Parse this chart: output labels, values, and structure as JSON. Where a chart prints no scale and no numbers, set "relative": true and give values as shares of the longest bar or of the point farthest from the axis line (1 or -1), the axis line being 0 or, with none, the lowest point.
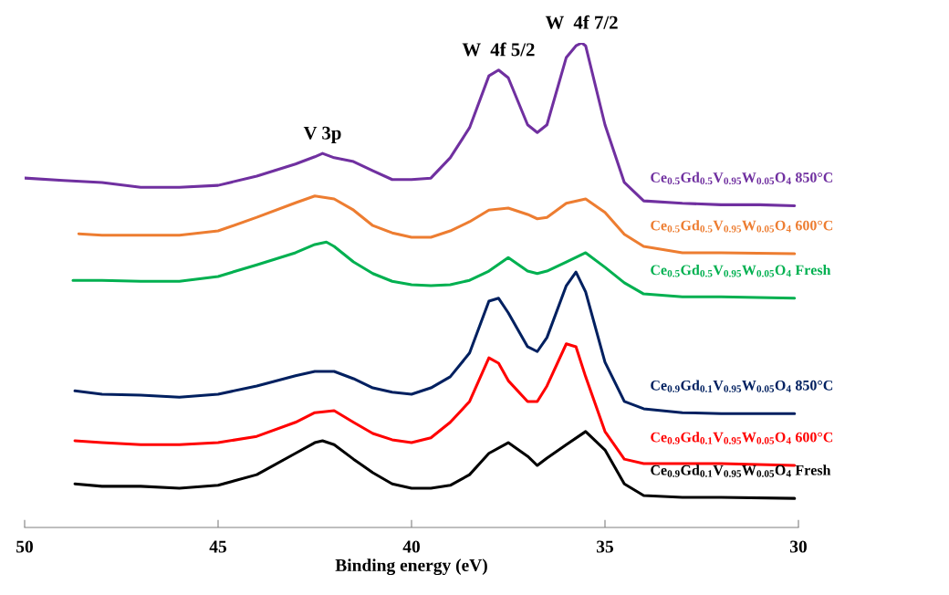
{
  "chart_data": {
    "type": "line",
    "relative": true,
    "xlabel": "Binding energy (eV)",
    "xlim": [
      50,
      30
    ],
    "xticks": [
      50,
      45,
      40,
      35,
      30
    ],
    "annotations": [
      {
        "text": "V 3p",
        "x": 42.3,
        "y": 0.772
      },
      {
        "text": "W  4f 5/2",
        "x": 37.75,
        "y": 0.944
      },
      {
        "text": "W  4f 7/2",
        "x": 35.6,
        "y": 1.0
      }
    ],
    "series": [
      {
        "name": "Ce$_{0.5}$Gd$_{0.5}$V$_{0.95}$W$_{0.05}$O$_{4}$ 850°C",
        "color": "#7030a0",
        "x": [
          50,
          49,
          48,
          47,
          46,
          45,
          44,
          43,
          42.5,
          42.3,
          42,
          41.5,
          41,
          40.5,
          40,
          39.5,
          39,
          38.5,
          38,
          37.75,
          37.5,
          37,
          36.75,
          36.5,
          36,
          35.75,
          35.6,
          35.5,
          35,
          34.5,
          34,
          33,
          32,
          31,
          30.1
        ],
        "values": [
          0.721,
          0.716,
          0.712,
          0.702,
          0.702,
          0.706,
          0.725,
          0.75,
          0.765,
          0.772,
          0.763,
          0.755,
          0.736,
          0.718,
          0.718,
          0.721,
          0.763,
          0.825,
          0.932,
          0.944,
          0.928,
          0.831,
          0.815,
          0.831,
          0.97,
          0.994,
          1.0,
          0.994,
          0.831,
          0.712,
          0.674,
          0.669,
          0.666,
          0.666,
          0.664
        ]
      },
      {
        "name": "Ce$_{0.5}$Gd$_{0.5}$V$_{0.95}$W$_{0.05}$O$_{4}$ 600°C",
        "color": "#ed7d31",
        "x": [
          48.6,
          48,
          47,
          46,
          45,
          44,
          43,
          42.5,
          42,
          41.5,
          41,
          40.5,
          40,
          39.5,
          39,
          38.5,
          38,
          37.5,
          37,
          36.75,
          36.5,
          36,
          35.5,
          35,
          34.5,
          34,
          33,
          32,
          30.1
        ],
        "values": [
          0.606,
          0.603,
          0.603,
          0.603,
          0.612,
          0.64,
          0.67,
          0.684,
          0.678,
          0.655,
          0.623,
          0.608,
          0.599,
          0.599,
          0.612,
          0.631,
          0.655,
          0.659,
          0.646,
          0.637,
          0.64,
          0.669,
          0.678,
          0.65,
          0.605,
          0.58,
          0.567,
          0.567,
          0.565
        ]
      },
      {
        "name": "Ce$_{0.5}$Gd$_{0.5}$V$_{0.95}$W$_{0.05}$O$_{4}$ Fresh",
        "color": "#00b050",
        "x": [
          48.75,
          48,
          47,
          46,
          45,
          44,
          43,
          42.5,
          42.2,
          42,
          41.5,
          41,
          40.5,
          40,
          39.5,
          39,
          38.5,
          38,
          37.5,
          37,
          36.75,
          36.5,
          36,
          35.5,
          35,
          34.5,
          34,
          33,
          32,
          30.1
        ],
        "values": [
          0.51,
          0.51,
          0.508,
          0.508,
          0.518,
          0.542,
          0.567,
          0.584,
          0.589,
          0.58,
          0.548,
          0.524,
          0.508,
          0.501,
          0.499,
          0.501,
          0.51,
          0.529,
          0.557,
          0.529,
          0.524,
          0.529,
          0.548,
          0.567,
          0.537,
          0.505,
          0.482,
          0.476,
          0.476,
          0.473
        ]
      },
      {
        "name": "Ce$_{0.9}$Gd$_{0.1}$V$_{0.95}$W$_{0.05}$O$_{4}$ 850°C",
        "color": "#002060",
        "x": [
          48.7,
          48,
          47,
          46,
          45,
          44,
          43,
          42.5,
          42,
          41.5,
          41,
          40.5,
          40,
          39.5,
          39,
          38.5,
          38,
          37.75,
          37.5,
          37,
          36.75,
          36.5,
          36,
          35.75,
          35.5,
          35,
          34.5,
          34,
          33,
          32,
          30.1
        ],
        "values": [
          0.282,
          0.275,
          0.273,
          0.269,
          0.275,
          0.292,
          0.313,
          0.322,
          0.322,
          0.307,
          0.288,
          0.279,
          0.275,
          0.288,
          0.311,
          0.36,
          0.467,
          0.473,
          0.443,
          0.373,
          0.363,
          0.392,
          0.499,
          0.527,
          0.486,
          0.341,
          0.26,
          0.245,
          0.237,
          0.235,
          0.235
        ]
      },
      {
        "name": "Ce$_{0.9}$Gd$_{0.1}$V$_{0.95}$W$_{0.05}$O$_{4}$ 600°C",
        "color": "#ff0000",
        "x": [
          48.7,
          48,
          47,
          46,
          45,
          44,
          43,
          42.5,
          42,
          41.5,
          41,
          40.5,
          40,
          39.5,
          39,
          38.5,
          38,
          37.75,
          37.5,
          37,
          36.75,
          36.5,
          36,
          35.75,
          35.5,
          35,
          34.5,
          34,
          33,
          32,
          30.1
        ],
        "values": [
          0.179,
          0.175,
          0.171,
          0.171,
          0.175,
          0.188,
          0.217,
          0.237,
          0.241,
          0.217,
          0.194,
          0.181,
          0.175,
          0.185,
          0.217,
          0.26,
          0.35,
          0.339,
          0.303,
          0.26,
          0.26,
          0.292,
          0.379,
          0.373,
          0.311,
          0.198,
          0.141,
          0.132,
          0.132,
          0.132,
          0.128
        ]
      },
      {
        "name": "Ce$_{0.9}$Gd$_{0.1}$V$_{0.95}$W$_{0.05}$O$_{4}$ Fresh",
        "color": "#000000",
        "x": [
          48.7,
          48,
          47,
          46,
          45,
          44,
          43,
          42.5,
          42.3,
          42,
          41.5,
          41,
          40.5,
          40,
          39.5,
          39,
          38.5,
          38,
          37.5,
          37,
          36.75,
          36.5,
          36,
          35.5,
          35,
          34.5,
          34,
          33,
          32,
          30.1
        ],
        "values": [
          0.09,
          0.085,
          0.085,
          0.081,
          0.087,
          0.109,
          0.153,
          0.175,
          0.179,
          0.171,
          0.141,
          0.113,
          0.09,
          0.081,
          0.081,
          0.087,
          0.109,
          0.153,
          0.175,
          0.147,
          0.128,
          0.143,
          0.171,
          0.198,
          0.16,
          0.09,
          0.066,
          0.062,
          0.062,
          0.06
        ]
      }
    ]
  }
}
